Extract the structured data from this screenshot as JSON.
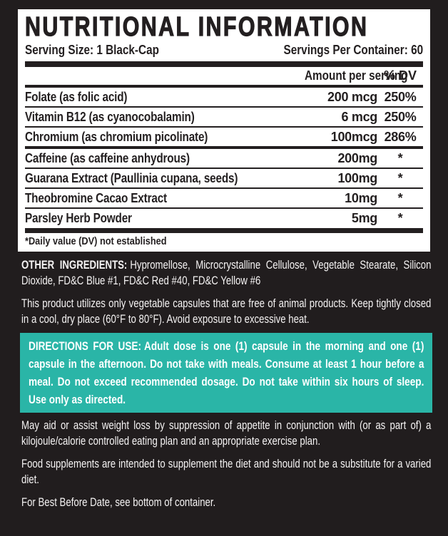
{
  "label": {
    "title": "NUTRITIONAL INFORMATION",
    "serving_size": "Serving Size: 1 Black-Cap",
    "servings_per_container": "Servings Per Container: 60",
    "table": {
      "amount_header": "Amount per serving",
      "dv_header": "% DV",
      "vitamin_rows": [
        {
          "name": "Folate (as folic acid)",
          "amount": "200 mcg",
          "dv": "250%"
        },
        {
          "name": "Vitamin B12 (as cyanocobalamin)",
          "amount": "6 mcg",
          "dv": "250%"
        },
        {
          "name": "Chromium (as chromium picolinate)",
          "amount": "100mcg",
          "dv": "286%"
        }
      ],
      "other_rows": [
        {
          "name": "Caffeine (as caffeine anhydrous)",
          "amount": "200mg",
          "dv": "*"
        },
        {
          "name": "Guarana Extract (Paullinia cupana, seeds)",
          "amount": "100mg",
          "dv": "*"
        },
        {
          "name": "Theobromine Cacao Extract",
          "amount": "10mg",
          "dv": "*"
        },
        {
          "name": "Parsley Herb Powder",
          "amount": "5mg",
          "dv": "*"
        }
      ],
      "footnote": "*Daily value (DV) not established"
    },
    "other_ingredients": {
      "label": "OTHER INGREDIENTS:",
      "text": "Hypromellose, Microcrystalline Cellulose, Vegetable Stearate, Silicon Dioxide, FD&C Blue #1, FD&C Red #40, FD&C Yellow #6"
    },
    "storage_note": "This product utilizes only vegetable capsules that are free of animal products. Keep tightly closed in a cool, dry place (60°F to 80°F). Avoid exposure to excessive heat.",
    "directions": {
      "label": "DIRECTIONS FOR USE:",
      "text": "Adult dose is one (1) capsule in the morning and one (1) capsule in the afternoon. Do not take with meals. Consume at least 1 hour before a meal. Do not exceed recommended dosage. Do not take within six hours of sleep. Use only as directed."
    },
    "claims": "May aid or assist weight loss by suppression of appetite in conjunction with (or as part of) a kilojoule/calorie controlled eating plan and an appropriate exercise plan.",
    "supplement_note": "Food supplements are intended to supplement the diet and should not be a substitute for a varied diet.",
    "best_before": "For Best Before Date, see bottom of container.",
    "colors": {
      "background": "#211d1e",
      "panel": "#ffffff",
      "ink": "#231f20",
      "accent_teal": "#2ab5a7",
      "light_text": "#f5f3f3"
    }
  }
}
